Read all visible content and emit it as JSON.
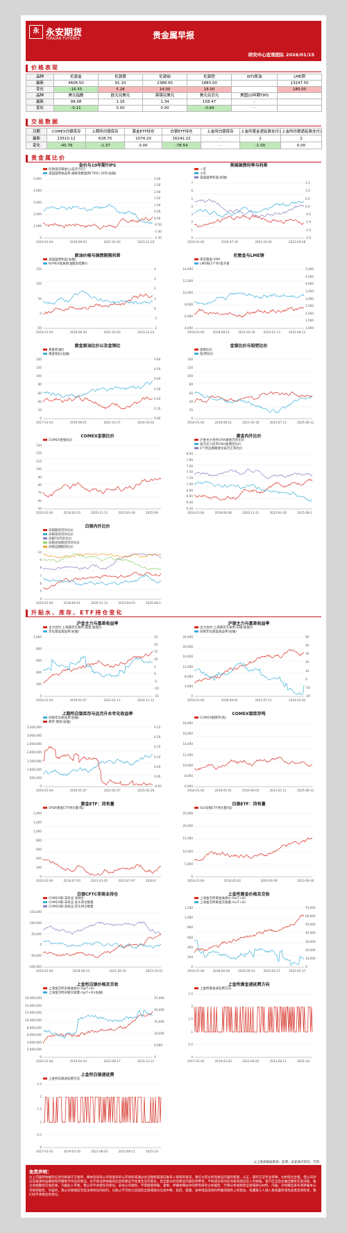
{
  "header": {
    "logo_mark": "永",
    "logo_cn": "永安期货",
    "logo_en": "YONGAN FUTURES",
    "title": "贵金属早报",
    "subtitle": "研究中心宏观团队  2026/01/15"
  },
  "sections": {
    "price": "价格表现",
    "trade": "交易数据",
    "ratio": "贵金属比价",
    "premium": "升贴水、库存、ETF持仓变化"
  },
  "price_table": {
    "rows": [
      [
        {
          "t": "品种",
          "c": "lbl"
        },
        {
          "t": "伦敦金"
        },
        {
          "t": "伦敦银"
        },
        {
          "t": "伦敦铂"
        },
        {
          "t": "伦敦钯"
        },
        {
          "t": "WTI原油"
        },
        {
          "t": "LME铜"
        }
      ],
      [
        {
          "t": "最新",
          "c": "lbl"
        },
        {
          "t": "4606.50"
        },
        {
          "t": "91.10"
        },
        {
          "t": "2388.00"
        },
        {
          "t": "1883.00"
        },
        {
          "t": ""
        },
        {
          "t": "13247.50"
        }
      ],
      [
        {
          "t": "变化",
          "c": "lbl"
        },
        {
          "t": "-16.55",
          "c": "dn"
        },
        {
          "t": "5.28",
          "c": "up"
        },
        {
          "t": "14.00",
          "c": "up"
        },
        {
          "t": "18.00",
          "c": "up"
        },
        {
          "t": ""
        },
        {
          "t": "180.00",
          "c": "up"
        }
      ],
      [
        {
          "t": "品种",
          "c": "lbl"
        },
        {
          "t": "美元指数"
        },
        {
          "t": "欧元兑美元"
        },
        {
          "t": "英镑兑美元"
        },
        {
          "t": "美元兑日元"
        },
        {
          "t": "美国10年期TIPS"
        },
        {
          "t": ""
        }
      ],
      [
        {
          "t": "最新",
          "c": "lbl"
        },
        {
          "t": "99.08"
        },
        {
          "t": "1.16"
        },
        {
          "t": "1.34"
        },
        {
          "t": "158.47"
        },
        {
          "t": "-"
        },
        {
          "t": ""
        }
      ],
      [
        {
          "t": "变化",
          "c": "lbl"
        },
        {
          "t": "-0.11",
          "c": "dn"
        },
        {
          "t": "0.00"
        },
        {
          "t": "0.00"
        },
        {
          "t": "-0.69",
          "c": "dn"
        },
        {
          "t": "-"
        },
        {
          "t": ""
        }
      ]
    ]
  },
  "trade_table": {
    "rows": [
      [
        {
          "t": "日期",
          "c": "lbl"
        },
        {
          "t": "COMEX白银库存"
        },
        {
          "t": "上期所白银库存"
        },
        {
          "t": "黄金ETF持仓"
        },
        {
          "t": "白银ETF持仓"
        },
        {
          "t": "上金所白银库存"
        },
        {
          "t": "上金所黄金递延费支付方向"
        },
        {
          "t": "上金所白银递延费支付方向"
        }
      ],
      [
        {
          "t": "最新",
          "c": "lbl"
        },
        {
          "t": "13510.12"
        },
        {
          "t": "628.70"
        },
        {
          "t": "1074.23"
        },
        {
          "t": "16242.22"
        },
        {
          "t": "-"
        },
        {
          "t": "1"
        },
        {
          "t": "2"
        }
      ],
      [
        {
          "t": "变化",
          "c": "lbl"
        },
        {
          "t": "-40.78",
          "c": "dn"
        },
        {
          "t": "-1.37",
          "c": "dn"
        },
        {
          "t": "0.00"
        },
        {
          "t": "-78.54",
          "c": "dn"
        },
        {
          "t": "-"
        },
        {
          "t": "-1.00",
          "c": "dn"
        },
        {
          "t": "0.00"
        }
      ]
    ]
  },
  "charts": [
    {
      "id": "c1",
      "title": "金价与10年期TIPS",
      "legend": [
        {
          "name": "伦敦现货黄金(以美元计价)",
          "color": "#d42a1e"
        },
        {
          "name": "美国国债收益率:通胀指数国债(TIPS):10年(右轴)",
          "color": "#3aaed8"
        }
      ],
      "yl": [
        "5,000",
        "4,000",
        "3,000",
        "2,000",
        "1,000",
        "0"
      ],
      "yr": [
        "3.00",
        "2.50",
        "2.00",
        "1.50",
        "1.00",
        "0.50",
        "0.00",
        "-0.50",
        "-1.00",
        "-1.50"
      ],
      "xt": [
        "2016-01-04",
        "2018-09-03",
        "2021-05-03",
        "2023-12-20"
      ]
    },
    {
      "id": "c2",
      "title": "美国国债利率与利差",
      "legend": [
        {
          "name": "一年",
          "color": "#d42a1e"
        },
        {
          "name": "十年",
          "color": "#3aaed8"
        },
        {
          "name": "美国国债利差(右轴)",
          "color": "#8e7cc3"
        }
      ],
      "yl": [
        "7",
        "6",
        "5",
        "4",
        "3",
        "2",
        "1",
        "0"
      ],
      "yr": [
        "1.5",
        "1.0",
        "0.5",
        "0.0",
        "-0.5",
        "-1.0",
        "-1.5",
        "-2.0"
      ],
      "xt": [
        "2016-01-04",
        "2018-07-20",
        "2021-03-05",
        "2023-09-28"
      ]
    },
    {
      "id": "c3",
      "title": "原油价格与国债期限利差",
      "legend": [
        {
          "name": "美国国债利差(右轴)",
          "color": "#d42a1e"
        },
        {
          "name": "NYMEX轻质原油期货结算价",
          "color": "#3aaed8"
        }
      ],
      "yl": [
        "150",
        "100",
        "50",
        "0",
        "-50"
      ],
      "yr": [
        "4",
        "3",
        "2",
        "1",
        "0",
        "-1",
        "-2"
      ],
      "xt": [
        "2016-01-04",
        "2018-08-30",
        "2021-05-03",
        "2023-12-22"
      ]
    },
    {
      "id": "c4",
      "title": "伦敦金与LME铜",
      "legend": [
        {
          "name": "现货黄金:SPM",
          "color": "#d42a1e"
        },
        {
          "name": "LME铜(3个月)电子盘",
          "color": "#3aaed8"
        }
      ],
      "yl": [
        "14,000",
        "12,000",
        "10,000",
        "8,000",
        "6,000",
        "4,000"
      ],
      "yr": [
        "5,000",
        "4,500",
        "4,000",
        "3,500",
        "3,000",
        "2,500",
        "2,000",
        "1,500",
        "1,000"
      ],
      "xt": [
        "2016-01-04",
        "2018-08-12",
        "2021-02-16",
        "2023-07-13",
        "2025-08-12"
      ]
    },
    {
      "id": "c5",
      "title": "黄金原油比价以及金铜比",
      "legend": [
        {
          "name": "黄金原油比",
          "color": "#d42a1e"
        },
        {
          "name": "黄金铜比(右轴)",
          "color": "#3aaed8"
        }
      ],
      "yl": [
        "140",
        "120",
        "100",
        "80",
        "60",
        "40",
        "20",
        "0"
      ],
      "yr": [
        "0.60",
        "0.50",
        "0.40",
        "0.30",
        "0.20",
        "0.10",
        "0.00"
      ],
      "xt": [
        "2017-01-03",
        "2019-06-01",
        "2021-10-27",
        "2024-04-02"
      ]
    },
    {
      "id": "c6",
      "title": "金银比价与铂钯比价",
      "legend": [
        {
          "name": "金银比价",
          "color": "#d42a1e"
        },
        {
          "name": "铂/钯比价",
          "color": "#3aaed8"
        }
      ],
      "yl": [
        "140",
        "120",
        "100",
        "80",
        "60",
        "40",
        "20",
        "0"
      ],
      "yr": [],
      "xt": [
        "2016-01-04",
        "2018-08-12",
        "2021-02-16",
        "2023-07-13",
        "2025-08-12"
      ]
    },
    {
      "id": "c7",
      "title": "COMEX金银比价",
      "legend": [
        {
          "name": "COMEX金银比价",
          "color": "#d42a1e"
        }
      ],
      "yl": [
        "130",
        "120",
        "110",
        "100",
        "90",
        "80",
        "70",
        "60",
        "50"
      ],
      "yr": [],
      "xt": [
        "2016-01-04",
        "2018-05-23",
        "2020-11-11",
        "2023-04-30",
        "2025-09-"
      ]
    },
    {
      "id": "c8",
      "title": "黄金内外比价",
      "legend": [
        {
          "name": "沪金主力合约CMX黄金内外比价",
          "color": "#d42a1e"
        },
        {
          "name": "美元兑人民币CNH金期货比价",
          "color": "#3aaed8"
        },
        {
          "name": "6个月远期黄金兑美元汇率比价",
          "color": "#8e7cc3"
        }
      ],
      "yl": [
        "8.00",
        "7.80",
        "7.60",
        "7.40",
        "7.20",
        "7.00",
        "6.80",
        "6.60",
        "6.40",
        "6.20"
      ],
      "yr": [],
      "xt": [
        "2016-01-04",
        "2018-06-08",
        "2020-11-11",
        "2023-04-30",
        "2025-08-2"
      ]
    },
    {
      "id": "c9",
      "title": "白银内外比价",
      "legend": [
        {
          "name": "白银期货内外比价",
          "color": "#d42a1e"
        },
        {
          "name": "白银现货内外比价",
          "color": "#3aaed8"
        },
        {
          "name": "白银TD内外比价",
          "color": "#8e7cc3"
        },
        {
          "name": "白银连续期货内外比价",
          "color": "#8fd16a"
        },
        {
          "name": "白银远期期货比价",
          "color": "#f0a030"
        }
      ],
      "yl": [
        "10",
        "9",
        "8",
        "7",
        "6",
        "5",
        "4"
      ],
      "yr": [],
      "xt": [
        "2016-01-04",
        "2018-06-01",
        "2020-11-11",
        "2023-04-03",
        "2025-08-2"
      ]
    },
    {
      "id": "c10",
      "title": "沪金主力与基差收益率",
      "legend": [
        {
          "name": "主力合约:上海期货交易所:黄金:收盘价",
          "color": "#d42a1e"
        },
        {
          "name": "年化基差收益率(右轴)",
          "color": "#3aaed8"
        }
      ],
      "yl": [
        "1,000",
        "800",
        "600",
        "400",
        "200",
        "0"
      ],
      "yr": [
        "25",
        "20",
        "15",
        "10",
        "5",
        "0",
        "-5",
        "-10",
        "-15"
      ],
      "xt": [
        "2016-01-04",
        "2019-01-07",
        "2022-01-11",
        "2024-11-12"
      ]
    },
    {
      "id": "c11",
      "title": "沪银主力与基差收益率",
      "legend": [
        {
          "name": "主力合约:上海期货交易所:白银:收盘价",
          "color": "#d42a1e"
        },
        {
          "name": "白银年化基差收益率(右轴)",
          "color": "#3aaed8"
        }
      ],
      "yl": [
        "24,000",
        "20,000",
        "16,000",
        "12,000",
        "8,000",
        "4,000",
        "0"
      ],
      "yr": [
        "50",
        "40",
        "30",
        "20",
        "10",
        "0",
        "-10",
        "-20"
      ],
      "xt": [
        "2016-01-04",
        "2018-09-01",
        "2021-07-11",
        "2024-01-02"
      ]
    },
    {
      "id": "c12",
      "title": "上期所白银库存与远月升水年化收益率",
      "legend": [
        {
          "name": "白银年化收益率(右轴)",
          "color": "#3aaed8"
        },
        {
          "name": "库存:期货(右轴)",
          "color": "#d42a1e"
        }
      ],
      "yl": [
        "3,500,000",
        "3,000,000",
        "2,500,000",
        "2,000,000",
        "1,500,000",
        "1,000,000",
        "500,000",
        "0"
      ],
      "yr": [
        "0.25",
        "0.20",
        "0.15",
        "0.10",
        "0.05",
        "0.00",
        "-0.05"
      ],
      "xt": [
        "2016-01-04",
        "2019-01-07",
        "2022-02-07",
        "2025-02-26"
      ]
    },
    {
      "id": "c13",
      "title": "COMEX银库存吨",
      "legend": [
        {
          "name": "COMEX银库存(吨)",
          "color": "#d42a1e"
        }
      ],
      "yl": [
        "18,000",
        "16,000",
        "14,000",
        "12,000",
        "10,000",
        "8,000",
        "6,000"
      ],
      "yr": [],
      "xt": [
        "2016-01-04",
        "2018-05-01",
        "2020-09-04",
        "2023-01-11",
        "2025-08-31"
      ]
    },
    {
      "id": "c14",
      "title": "黄金ETF：持有量",
      "legend": [
        {
          "name": "SPDR黄金ETF持仓量(吨)",
          "color": "#d42a1e"
        }
      ],
      "yl": [
        "1,400",
        "1,200",
        "1,000",
        "800",
        "600",
        "400",
        "200",
        "0"
      ],
      "yr": [],
      "xt": [
        "2016-01-04",
        "2018-07-03",
        "2021-01-01",
        "2023-07-07",
        "2026-0"
      ]
    },
    {
      "id": "c15",
      "title": "白银ETF：持有量",
      "legend": [
        {
          "name": "SLV白银ETF持仓量(吨)",
          "color": "#d42a1e"
        }
      ],
      "yl": [
        "25,000",
        "20,000",
        "15,000",
        "10,000",
        "5,000",
        "0"
      ],
      "yr": [],
      "xt": [
        "2016-01-04",
        "2018-05-02",
        "2020-09-29",
        "2023-06-26"
      ]
    },
    {
      "id": "c16",
      "title": "白银CFTC非商业持仓",
      "legend": [
        {
          "name": "COMEX银:非商业:净持仓",
          "color": "#d42a1e"
        },
        {
          "name": "COMEX银:非商业:多头持仓数量",
          "color": "#3aaed8"
        },
        {
          "name": "COMEX银:非商业:空头持仓数量",
          "color": "#8e7cc3"
        }
      ],
      "yl": [
        "150,000",
        "100,000",
        "50,000",
        "0",
        "-50,000",
        "-100,000"
      ],
      "yr": [],
      "xt": [
        "2016-01-04",
        "2018-08-14",
        "2021-04-20",
        "2023-10-31"
      ]
    },
    {
      "id": "c17",
      "title": "上金所黄金价格及交收",
      "legend": [
        {
          "name": "上海金交所黄金收盘价:Au(T+D)",
          "color": "#d42a1e"
        },
        {
          "name": "上海金交所黄金交收量:Au(T+D)",
          "color": "#3aaed8"
        }
      ],
      "yl": [
        "1,200",
        "1,000",
        "800",
        "600",
        "400",
        "200",
        "0"
      ],
      "yr": [
        "70,000",
        "60,000",
        "50,000",
        "40,000",
        "30,000",
        "20,000",
        "10,000",
        "0"
      ],
      "xt": [
        "2016-01-04",
        "2018-06-18",
        "2020-09-24",
        "2023-02-27",
        "2025-02-17"
      ]
    },
    {
      "id": "c18",
      "title": "上金所白银价格及交收",
      "legend": [
        {
          "name": "上海金交所白银收盘价:Ag(T+D)",
          "color": "#d42a1e"
        },
        {
          "name": "上海金交所白银交收量:Ag(T+D)(右轴)",
          "color": "#3aaed8"
        }
      ],
      "yl": [
        "16,000,000",
        "14,000,000",
        "12,000,000",
        "10,000,000",
        "8,000,000",
        "6,000,000",
        "4,000,000",
        "2,000,000",
        "0"
      ],
      "yr": [
        "25,000",
        "20,000",
        "15,000",
        "10,000",
        "5,000",
        "0"
      ],
      "xt": [
        "2016-01-04",
        "2019-04-24",
        "2022-08-17",
        "2025-12-11"
      ]
    },
    {
      "id": "c19",
      "title": "上金所黄金递延费方向",
      "legend": [
        {
          "name": "上金所黄金递延费方向",
          "color": "#d42a1e"
        }
      ],
      "yl": [
        "2.5",
        "2",
        "1.5",
        "1",
        "0.5",
        "0"
      ],
      "yr": [],
      "xt": [
        "2017-01-03",
        "2019-03-20",
        "2021-06-02",
        "2023-08-11",
        "2025-10-"
      ]
    },
    {
      "id": "c20",
      "title": "上金所白银递延费",
      "legend": [
        {
          "name": "上金所白银递延费方向",
          "color": "#d42a1e"
        }
      ],
      "yl": [
        "2.5",
        "2",
        "1.5",
        "1",
        "0.5",
        "0"
      ],
      "yr": [],
      "xt": [
        "2017-01-03",
        "2019-03-20",
        "2021-06-03",
        "2023-08-11",
        "2025-10-"
      ]
    }
  ],
  "source_note": "以上图表数据来源：彭博，永安源点资讯，万得",
  "disclaimer": {
    "title": "免责声明：",
    "body": "以上内容所依据的信息均来源于交易所、媒体及资讯公司等发布的公开资料或通过合法授权渠道向发布人取得的资讯，我们力求分析及建议内容的客观、公正，研究方法专业审慎，分析结论合理，但公司对信息来源的准确性和完整性不作任何保证，也不保证所依据的信息和建议不会发生任何变化。且全部分析及建议内容仅供参考，不构成对您的任何投资建议及入市依据，客户应当自主做出期货交易决策，独立承担期货交易后果，凡据此入市者，我公司不承担任何责任。未经公司授权，不得随意转载、复制、传播本网站中的所有研究分析报告、行情分析视频等全部或部分材料、内容。对何擅自发布或转载本公司研究报告、内容的，我公司保留追究其法律责任的权利，以防止不可抗力造成的全部或部分信息中断、延迟、遗漏、误导或造成资料传输或储存上的错误、或遭第三人侵入系统篡改或伪造变造资料等，我们均不承担任何责任。"
  }
}
